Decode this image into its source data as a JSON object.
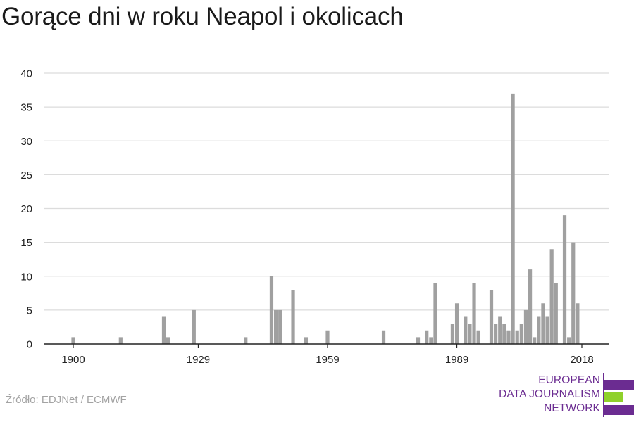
{
  "header": {
    "title": "Gorące dni w roku Neapol i okolicach"
  },
  "footer": {
    "source": "Źródło: EDJNet / ECMWF"
  },
  "logo": {
    "lines": [
      "EUROPEAN",
      "DATA JOURNALISM",
      "NETWORK"
    ],
    "colors": {
      "primary": "#6b2c91",
      "accent": "#8fd12a"
    }
  },
  "colors": {
    "bar": "#a0a0a0",
    "grid": "#dcdcdc",
    "axis": "#222222",
    "tick_label": "#222222"
  },
  "chart_data": {
    "type": "bar",
    "title": "Gorące dni w roku Neapol i okolicach",
    "xlabel": "",
    "ylabel": "",
    "xlim": [
      1900,
      2018
    ],
    "ylim": [
      0,
      40
    ],
    "x_ticks": [
      1900,
      1929,
      1959,
      1989,
      2018
    ],
    "y_ticks": [
      0,
      5,
      10,
      15,
      20,
      25,
      30,
      35,
      40
    ],
    "grid": "horizontal",
    "legend": "none",
    "series": [
      {
        "points": [
          [
            1900,
            1
          ],
          [
            1911,
            1
          ],
          [
            1921,
            4
          ],
          [
            1922,
            1
          ],
          [
            1928,
            5
          ],
          [
            1940,
            1
          ],
          [
            1946,
            10
          ],
          [
            1947,
            5
          ],
          [
            1948,
            5
          ],
          [
            1951,
            8
          ],
          [
            1954,
            1
          ],
          [
            1959,
            2
          ],
          [
            1972,
            2
          ],
          [
            1980,
            1
          ],
          [
            1982,
            2
          ],
          [
            1983,
            1
          ],
          [
            1984,
            9
          ],
          [
            1988,
            3
          ],
          [
            1989,
            6
          ],
          [
            1991,
            4
          ],
          [
            1992,
            3
          ],
          [
            1993,
            9
          ],
          [
            1994,
            2
          ],
          [
            1997,
            8
          ],
          [
            1998,
            3
          ],
          [
            1999,
            4
          ],
          [
            2000,
            3
          ],
          [
            2001,
            2
          ],
          [
            2002,
            37
          ],
          [
            2003,
            2
          ],
          [
            2004,
            3
          ],
          [
            2005,
            5
          ],
          [
            2006,
            11
          ],
          [
            2007,
            1
          ],
          [
            2008,
            4
          ],
          [
            2009,
            6
          ],
          [
            2010,
            4
          ],
          [
            2011,
            14
          ],
          [
            2012,
            9
          ],
          [
            2014,
            19
          ],
          [
            2015,
            1
          ],
          [
            2016,
            15
          ],
          [
            2017,
            6
          ]
        ]
      }
    ]
  }
}
